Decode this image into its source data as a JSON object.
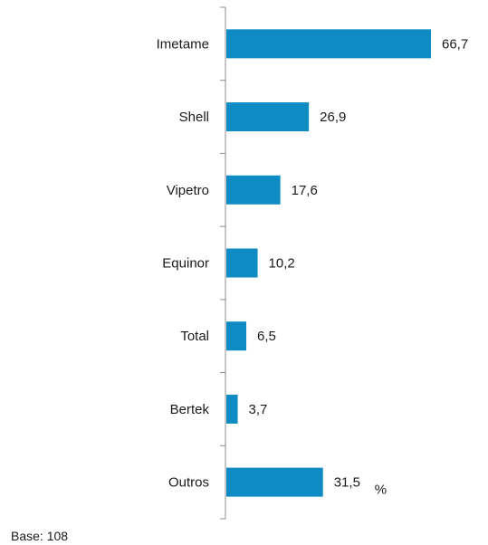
{
  "chart_data": {
    "type": "bar",
    "orientation": "horizontal",
    "categories": [
      "Imetame",
      "Shell",
      "Vipetro",
      "Equinor",
      "Total",
      "Bertek",
      "Outros"
    ],
    "values": [
      66.7,
      26.9,
      17.6,
      10.2,
      6.5,
      3.7,
      31.5
    ],
    "value_labels": [
      "66,7",
      "26,9",
      "17,6",
      "10,2",
      "6,5",
      "3,7",
      "31,5"
    ],
    "unit_label": "%",
    "bar_color": "#0f8bc4",
    "xlim": [
      0,
      70
    ],
    "grid": false,
    "title": "",
    "xlabel": "",
    "ylabel": ""
  },
  "footnote": "Base: 108"
}
